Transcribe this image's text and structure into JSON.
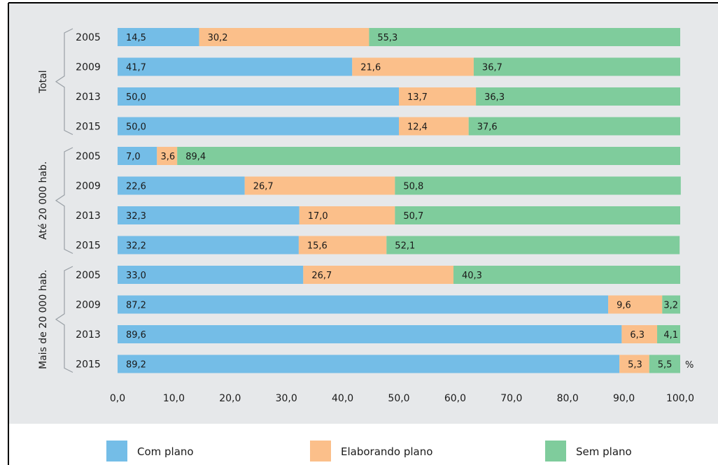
{
  "chart_data": {
    "type": "bar",
    "orientation": "horizontal",
    "stacked": true,
    "xlim": [
      0,
      100
    ],
    "x_ticks": [
      "0,0",
      "10,0",
      "20,0",
      "30,0",
      "40,0",
      "50,0",
      "60,0",
      "70,0",
      "80,0",
      "90,0",
      "100,0"
    ],
    "unit": "%",
    "groups": [
      {
        "name": "Total",
        "years": [
          "2005",
          "2009",
          "2013",
          "2015"
        ]
      },
      {
        "name": "Até 20 000 hab.",
        "years": [
          "2005",
          "2009",
          "2013",
          "2015"
        ]
      },
      {
        "name": "Mais de 20 000 hab.",
        "years": [
          "2005",
          "2009",
          "2013",
          "2015"
        ]
      }
    ],
    "series": [
      {
        "name": "Com plano",
        "color": "#74bde7",
        "values": [
          14.5,
          41.7,
          50.0,
          50.0,
          7.0,
          22.6,
          32.3,
          32.2,
          33.0,
          87.2,
          89.6,
          89.2
        ],
        "labels": [
          "14,5",
          "41,7",
          "50,0",
          "50,0",
          "7,0",
          "22,6",
          "32,3",
          "32,2",
          "33,0",
          "87,2",
          "89,6",
          "89,2"
        ]
      },
      {
        "name": "Elaborando plano",
        "color": "#fbbf8a",
        "values": [
          30.2,
          21.6,
          13.7,
          12.4,
          3.6,
          26.7,
          17.0,
          15.6,
          26.7,
          9.6,
          6.3,
          5.3
        ],
        "labels": [
          "30,2",
          "21,6",
          "13,7",
          "12,4",
          "3,6",
          "26,7",
          "17,0",
          "15,6",
          "26,7",
          "9,6",
          "6,3",
          "5,3"
        ]
      },
      {
        "name": "Sem plano",
        "color": "#7fcc9c",
        "values": [
          55.3,
          36.7,
          36.3,
          37.6,
          89.4,
          50.8,
          50.7,
          52.1,
          40.3,
          3.2,
          4.1,
          5.5
        ],
        "labels": [
          "55,3",
          "36,7",
          "36,3",
          "37,6",
          "89,4",
          "50,8",
          "50,7",
          "52,1",
          "40,3",
          "3,2",
          "4,1",
          "5,5"
        ]
      }
    ],
    "legend_position": "bottom",
    "grid": false
  }
}
